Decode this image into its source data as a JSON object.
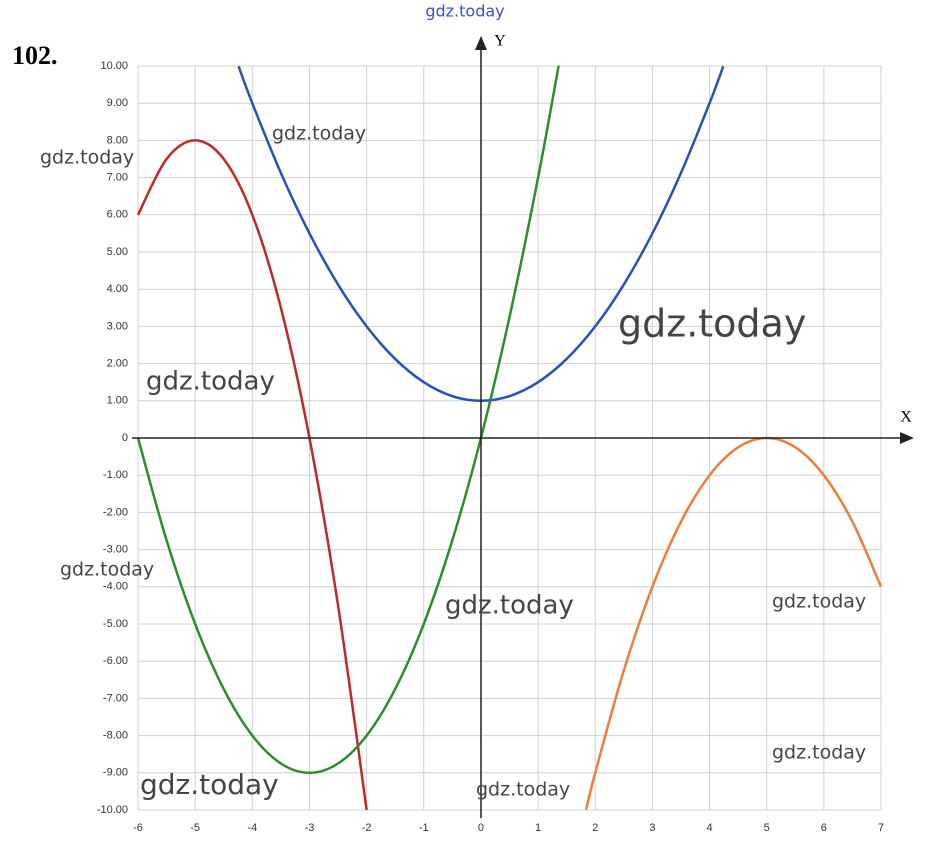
{
  "chart_data": {
    "type": "line",
    "title": "102.",
    "xlabel": "X",
    "ylabel": "Y",
    "watermark": "gdz.today",
    "xlim": [
      -6,
      7
    ],
    "ylim": [
      -10,
      10
    ],
    "xticks": [
      -6,
      -5,
      -4,
      -3,
      -2,
      -1,
      0,
      1,
      2,
      3,
      4,
      5,
      6,
      7
    ],
    "yticks": [
      {
        "value": 10,
        "label": "10.00"
      },
      {
        "value": 9,
        "label": "9.00"
      },
      {
        "value": 8,
        "label": "8.00"
      },
      {
        "value": 7,
        "label": "7.00"
      },
      {
        "value": 6,
        "label": "6.00"
      },
      {
        "value": 5,
        "label": "5.00"
      },
      {
        "value": 4,
        "label": "4.00"
      },
      {
        "value": 3,
        "label": "3.00"
      },
      {
        "value": 2,
        "label": "2.00"
      },
      {
        "value": 1,
        "label": "1.00"
      },
      0,
      {
        "value": -1,
        "label": "-1.00"
      },
      {
        "value": -2,
        "label": "-2.00"
      },
      {
        "value": -3,
        "label": "-3.00"
      },
      {
        "value": -4,
        "label": "-4.00"
      },
      {
        "value": -5,
        "label": "-5.00"
      },
      {
        "value": -6,
        "label": "-6.00"
      },
      {
        "value": -7,
        "label": "-7.00"
      },
      {
        "value": -8,
        "label": "-8.00"
      },
      {
        "value": -9,
        "label": "-9.00"
      },
      {
        "value": -10,
        "label": "-10.00"
      }
    ],
    "grid": true,
    "series": [
      {
        "color": "#c0282a",
        "x": [
          -6,
          -5.5,
          -5,
          -4.5,
          -4,
          -3.5,
          -3,
          -2.5,
          -2
        ],
        "values": [
          6,
          7.5,
          8,
          7.5,
          6,
          3.5,
          0,
          -4.5,
          -10
        ]
      },
      {
        "color": "#2a4fb5",
        "x": [
          -4.24,
          -4,
          -3.5,
          -3,
          -2.5,
          -2,
          -1.5,
          -1,
          -0.5,
          0,
          0.5,
          1,
          1.5,
          2,
          2.5,
          3,
          3.5,
          4,
          4.24
        ],
        "values": [
          9.99,
          9,
          7.125,
          5.5,
          4.125,
          3,
          2.125,
          1.5,
          1.125,
          1,
          1.125,
          1.5,
          2.125,
          3,
          4.125,
          5.5,
          7.125,
          9,
          9.99
        ]
      },
      {
        "color": "#2e8b2e",
        "x": [
          -6,
          -5.5,
          -5,
          -4.5,
          -4,
          -3.5,
          -3,
          -2.5,
          -2,
          -1.5,
          -1,
          -0.5,
          0,
          0.5,
          1,
          1.36
        ],
        "values": [
          0,
          -2.75,
          -5,
          -6.75,
          -8,
          -8.75,
          -9,
          -8.75,
          -8,
          -6.75,
          -5,
          -2.75,
          0,
          3.25,
          7,
          10.01
        ]
      },
      {
        "color": "#ee7d3a",
        "x": [
          1.84,
          2,
          2.5,
          3,
          3.5,
          4,
          4.5,
          5,
          5.5,
          6,
          6.5,
          7
        ],
        "values": [
          -9.99,
          -9,
          -6.25,
          -4,
          -2.25,
          -1,
          -0.25,
          0,
          -0.25,
          -1,
          -2.25,
          -4
        ]
      }
    ]
  }
}
